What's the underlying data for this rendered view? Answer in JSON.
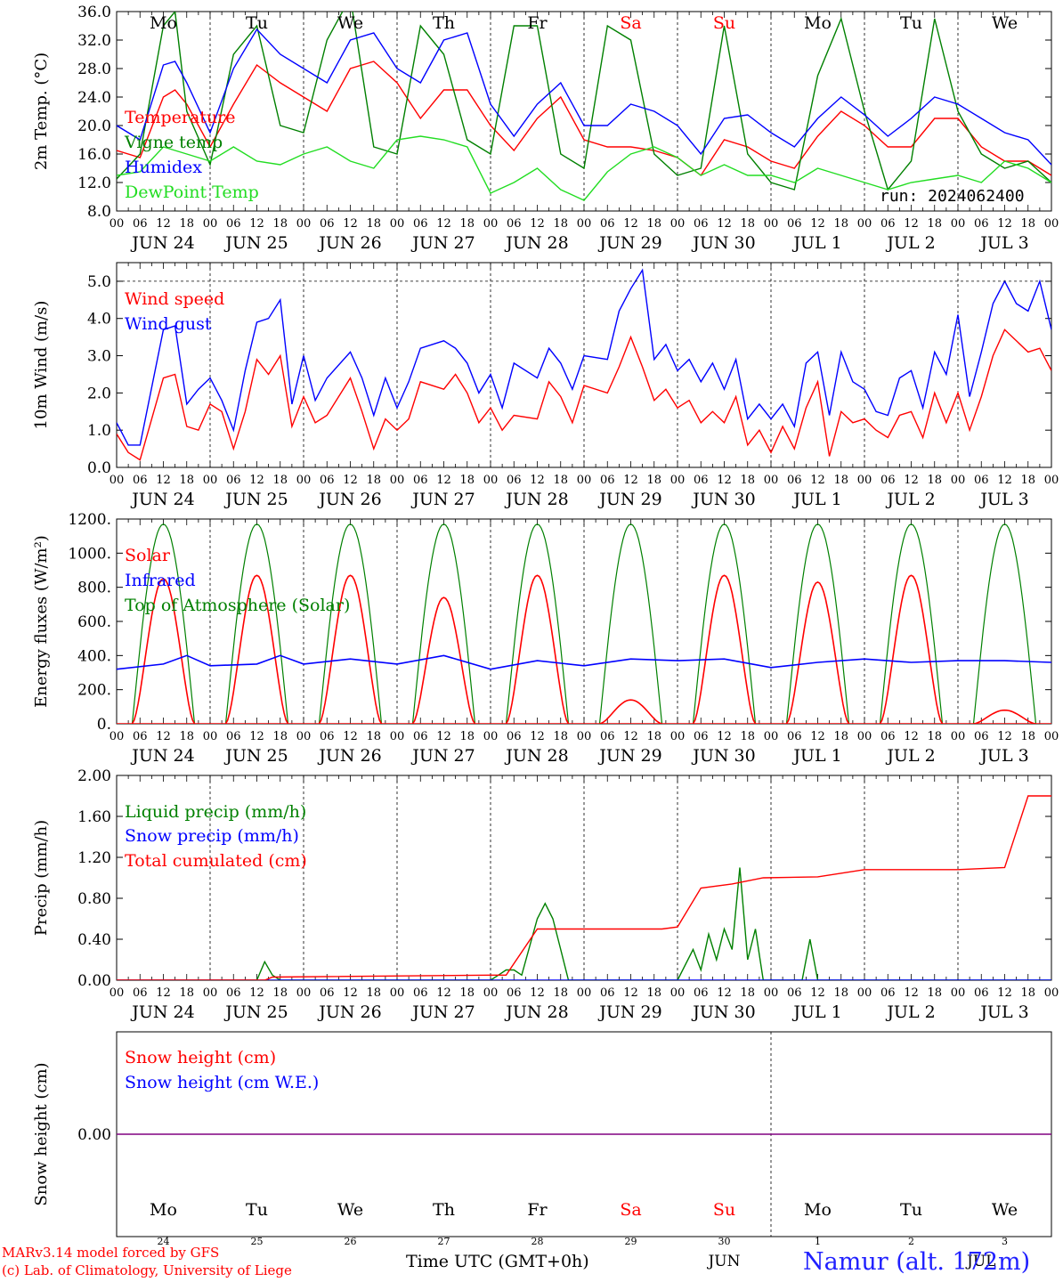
{
  "run_label": "run: 2024062400",
  "footer": {
    "credit_line1": "MARv3.14 model forced by GFS",
    "credit_line2": "(c) Lab. of Climatology, University of Liege",
    "axis_label": "Time UTC (GMT+0h)",
    "station": "Namur (alt. 172m)"
  },
  "days": {
    "weekdays": [
      "Mo",
      "Tu",
      "We",
      "Th",
      "Fr",
      "Sa",
      "Su",
      "Mo",
      "Tu",
      "We"
    ],
    "weekend_flags": [
      false,
      false,
      false,
      false,
      false,
      true,
      true,
      false,
      false,
      false
    ],
    "dates": [
      "JUN 24",
      "JUN 25",
      "JUN 26",
      "JUN 27",
      "JUN 28",
      "JUN 29",
      "JUN 30",
      "JUL  1",
      "JUL  2",
      "JUL  3"
    ],
    "day_numbers": [
      "24",
      "25",
      "26",
      "27",
      "28",
      "29",
      "30",
      "1",
      "2",
      "3"
    ],
    "month_labels": [
      "JUN",
      "JUL"
    ],
    "hour_ticks": [
      "00",
      "06",
      "12",
      "18"
    ]
  },
  "colors": {
    "red": "#ff0000",
    "green": "#008000",
    "blue": "#0000ff",
    "lightgreen": "#22dd22",
    "purple": "#800080"
  },
  "chart_data": [
    {
      "type": "line",
      "ylabel": "2m Temp. (°C)",
      "ylim": [
        8,
        36
      ],
      "yticks": [
        "8.0",
        "12.0",
        "16.0",
        "20.0",
        "24.0",
        "28.0",
        "32.0",
        "36.0"
      ],
      "x_unit": "hours since JUN 24 00 UTC",
      "series": [
        {
          "name": "Temperature",
          "color": "#ff0000",
          "x": [
            0,
            6,
            12,
            15,
            18,
            24,
            30,
            36,
            42,
            48,
            54,
            60,
            66,
            72,
            78,
            84,
            90,
            96,
            102,
            108,
            114,
            120,
            126,
            132,
            138,
            144,
            150,
            156,
            162,
            168,
            174,
            180,
            186,
            192,
            198,
            204,
            210,
            216,
            222,
            228,
            234,
            240
          ],
          "values": [
            16.5,
            15.5,
            24,
            25,
            23,
            17,
            23,
            28.5,
            26,
            24,
            22,
            28,
            29,
            26,
            21,
            25,
            25,
            20,
            16.5,
            21,
            24,
            18,
            17,
            17,
            16.5,
            15.5,
            13,
            18,
            17,
            15,
            14,
            18.5,
            22,
            20,
            17,
            17,
            21,
            21,
            17,
            15,
            15,
            13
          ]
        },
        {
          "name": "Vigne temp",
          "color": "#008000",
          "x": [
            0,
            6,
            12,
            15,
            18,
            24,
            30,
            36,
            42,
            48,
            54,
            60,
            66,
            72,
            78,
            84,
            90,
            96,
            102,
            108,
            114,
            120,
            126,
            132,
            138,
            144,
            150,
            156,
            162,
            168,
            174,
            180,
            186,
            192,
            198,
            204,
            210,
            216,
            222,
            228,
            234,
            240
          ],
          "values": [
            12.5,
            16,
            34,
            36,
            22,
            14.5,
            30,
            34,
            20,
            19,
            32,
            38,
            17,
            16,
            34,
            30,
            18,
            16,
            34,
            34,
            16,
            14,
            34,
            32,
            16,
            13,
            14,
            34,
            16,
            12,
            11,
            27,
            35,
            22,
            11,
            15,
            35,
            22,
            16,
            14,
            15,
            12
          ]
        },
        {
          "name": "Humidex",
          "color": "#0000ff",
          "x": [
            0,
            6,
            12,
            15,
            18,
            24,
            30,
            36,
            42,
            48,
            54,
            60,
            66,
            72,
            78,
            84,
            90,
            96,
            102,
            108,
            114,
            120,
            126,
            132,
            138,
            144,
            150,
            156,
            162,
            168,
            174,
            180,
            186,
            192,
            198,
            204,
            210,
            216,
            222,
            228,
            234,
            240
          ],
          "values": [
            20,
            18,
            28.5,
            29,
            26,
            19,
            28,
            33.5,
            30,
            28,
            26,
            32,
            33,
            28,
            26,
            32,
            33,
            23,
            18.5,
            23,
            26,
            20,
            20,
            23,
            22,
            20,
            16,
            21,
            21.5,
            19,
            17,
            21,
            24,
            21.5,
            18.5,
            21,
            24,
            23,
            21,
            19,
            18,
            14.5
          ]
        },
        {
          "name": "DewPoint Temp",
          "color": "#22dd22",
          "x": [
            0,
            6,
            12,
            18,
            24,
            30,
            36,
            42,
            48,
            54,
            60,
            66,
            72,
            78,
            84,
            90,
            96,
            102,
            108,
            114,
            120,
            126,
            132,
            138,
            144,
            150,
            156,
            162,
            168,
            174,
            180,
            186,
            192,
            198,
            204,
            210,
            216,
            222,
            228,
            234,
            240
          ],
          "values": [
            13,
            13.5,
            17,
            16,
            15,
            17,
            15,
            14.5,
            16,
            17,
            15,
            14,
            18,
            18.5,
            18,
            17,
            10.5,
            12,
            14,
            11,
            9.5,
            13.5,
            16,
            17,
            15.5,
            13,
            14.5,
            13,
            13,
            12,
            14,
            13,
            12,
            11,
            12,
            12.5,
            13,
            12,
            15,
            14,
            12
          ]
        }
      ]
    },
    {
      "type": "line",
      "ylabel": "10m Wind (m/s)",
      "ylim": [
        0,
        5.5
      ],
      "yticks": [
        "0.0",
        "1.0",
        "2.0",
        "3.0",
        "4.0",
        "5.0"
      ],
      "reference_line": 5.0,
      "series": [
        {
          "name": "Wind speed",
          "color": "#ff0000",
          "x": [
            0,
            3,
            6,
            12,
            15,
            18,
            21,
            24,
            27,
            30,
            33,
            36,
            39,
            42,
            45,
            48,
            51,
            54,
            60,
            63,
            66,
            69,
            72,
            75,
            78,
            84,
            87,
            90,
            93,
            96,
            99,
            102,
            108,
            111,
            114,
            117,
            120,
            126,
            129,
            132,
            135,
            138,
            141,
            144,
            147,
            150,
            153,
            156,
            159,
            162,
            165,
            168,
            171,
            174,
            177,
            180,
            183,
            186,
            189,
            192,
            195,
            198,
            201,
            204,
            207,
            210,
            213,
            216,
            219,
            222,
            225,
            228,
            231,
            234,
            237,
            240
          ],
          "values": [
            0.9,
            0.4,
            0.2,
            2.4,
            2.5,
            1.1,
            1.0,
            1.7,
            1.5,
            0.5,
            1.5,
            2.9,
            2.5,
            3.0,
            1.1,
            1.9,
            1.2,
            1.4,
            2.4,
            1.5,
            0.5,
            1.3,
            1.0,
            1.3,
            2.3,
            2.1,
            2.5,
            2.0,
            1.2,
            1.6,
            1.0,
            1.4,
            1.3,
            2.3,
            1.9,
            1.2,
            2.2,
            2.0,
            2.7,
            3.5,
            2.7,
            1.8,
            2.1,
            1.6,
            1.8,
            1.2,
            1.5,
            1.2,
            1.9,
            0.6,
            1.0,
            0.4,
            1.1,
            0.5,
            1.6,
            2.3,
            0.3,
            1.5,
            1.2,
            1.3,
            1.0,
            0.8,
            1.4,
            1.5,
            0.8,
            2.0,
            1.2,
            2.0,
            1.0,
            1.9,
            3.0,
            3.7,
            3.4,
            3.1,
            3.2,
            2.6
          ]
        },
        {
          "name": "Wind gust",
          "color": "#0000ff",
          "x": [
            0,
            3,
            6,
            12,
            15,
            18,
            21,
            24,
            27,
            30,
            33,
            36,
            39,
            42,
            45,
            48,
            51,
            54,
            60,
            63,
            66,
            69,
            72,
            75,
            78,
            84,
            87,
            90,
            93,
            96,
            99,
            102,
            108,
            111,
            114,
            117,
            120,
            126,
            129,
            132,
            135,
            138,
            141,
            144,
            147,
            150,
            153,
            156,
            159,
            162,
            165,
            168,
            171,
            174,
            177,
            180,
            183,
            186,
            189,
            192,
            195,
            198,
            201,
            204,
            207,
            210,
            213,
            216,
            219,
            222,
            225,
            228,
            231,
            234,
            237,
            240
          ],
          "values": [
            1.2,
            0.6,
            0.6,
            3.7,
            3.8,
            1.7,
            2.1,
            2.4,
            1.8,
            1.0,
            2.6,
            3.9,
            4.0,
            4.5,
            1.7,
            3.0,
            1.8,
            2.4,
            3.1,
            2.4,
            1.4,
            2.4,
            1.6,
            2.3,
            3.2,
            3.4,
            3.2,
            2.8,
            2.0,
            2.5,
            1.6,
            2.8,
            2.4,
            3.2,
            2.8,
            2.1,
            3.0,
            2.9,
            4.2,
            4.8,
            5.3,
            2.9,
            3.3,
            2.6,
            2.9,
            2.3,
            2.8,
            2.1,
            2.9,
            1.3,
            1.7,
            1.3,
            1.7,
            1.1,
            2.8,
            3.1,
            1.4,
            3.1,
            2.3,
            2.1,
            1.5,
            1.4,
            2.4,
            2.6,
            1.6,
            3.1,
            2.5,
            4.1,
            1.9,
            3.1,
            4.4,
            5.0,
            4.4,
            4.2,
            5.0,
            3.7
          ]
        }
      ]
    },
    {
      "type": "line",
      "ylabel": "Energy fluxes (W/m²)",
      "ylim": [
        0,
        1200
      ],
      "yticks": [
        "0.",
        "200.",
        "400.",
        "600.",
        "800.",
        "1000.",
        "1200."
      ],
      "series": [
        {
          "name": "Solar",
          "color": "#ff0000",
          "day_peaks": [
            850,
            870,
            870,
            740,
            870,
            140,
            870,
            830,
            870,
            80
          ]
        },
        {
          "name": "Infrared",
          "color": "#0000ff",
          "x": [
            0,
            12,
            18,
            24,
            36,
            42,
            48,
            60,
            72,
            84,
            96,
            108,
            120,
            132,
            144,
            156,
            168,
            180,
            192,
            204,
            216,
            228,
            240
          ],
          "values": [
            320,
            350,
            400,
            340,
            350,
            400,
            350,
            380,
            350,
            400,
            320,
            370,
            340,
            380,
            370,
            380,
            330,
            360,
            380,
            360,
            370,
            370,
            360
          ]
        },
        {
          "name": "Top of Atmosphere (Solar)",
          "color": "#008000",
          "day_peak": 1170
        }
      ]
    },
    {
      "type": "line",
      "ylabel": "Precip (mm/h)",
      "ylim": [
        0,
        2.0
      ],
      "yticks": [
        "0.00",
        "0.40",
        "0.80",
        "1.20",
        "1.60",
        "2.00"
      ],
      "series": [
        {
          "name": "Liquid precip (mm/h)",
          "color": "#008000",
          "x": [
            0,
            36,
            38,
            40,
            42,
            96,
            98,
            100,
            102,
            104,
            108,
            110,
            112,
            114,
            116,
            120,
            144,
            148,
            150,
            152,
            154,
            156,
            158,
            160,
            162,
            164,
            166,
            168,
            170,
            176,
            178,
            180,
            182,
            190,
            191,
            192,
            193,
            194,
            195,
            240
          ],
          "values": [
            0,
            0,
            0.18,
            0.05,
            0,
            0,
            0.05,
            0.1,
            0.1,
            0.05,
            0.6,
            0.75,
            0.6,
            0.3,
            0,
            0,
            0,
            0.3,
            0.1,
            0.45,
            0.2,
            0.5,
            0.3,
            1.1,
            0.2,
            0.5,
            0,
            0,
            0,
            0,
            0.4,
            0,
            0,
            0,
            0,
            0,
            0,
            0,
            0,
            0
          ]
        },
        {
          "name": "Snow precip (mm/h)",
          "color": "#0000ff",
          "x": [
            0,
            240
          ],
          "values": [
            0,
            0
          ]
        },
        {
          "name": "Total cumulated (cm)",
          "color": "#ff0000",
          "x": [
            0,
            38,
            40,
            96,
            100,
            108,
            114,
            120,
            140,
            144,
            150,
            158,
            166,
            180,
            192,
            216,
            228,
            234,
            240
          ],
          "values": [
            0,
            0,
            0.03,
            0.05,
            0.05,
            0.5,
            0.5,
            0.5,
            0.5,
            0.52,
            0.9,
            0.94,
            1.0,
            1.01,
            1.08,
            1.08,
            1.1,
            1.8,
            1.8
          ]
        }
      ]
    },
    {
      "type": "line",
      "ylabel": "Snow height (cm)",
      "yticks": [
        "0.00"
      ],
      "series": [
        {
          "name": "Snow height (cm)",
          "color": "#ff0000",
          "x": [
            0,
            240
          ],
          "values": [
            0,
            0
          ]
        },
        {
          "name": "Snow height (cm W.E.)",
          "color": "#0000ff",
          "x": [
            0,
            240
          ],
          "values": [
            0,
            0
          ]
        }
      ]
    }
  ]
}
